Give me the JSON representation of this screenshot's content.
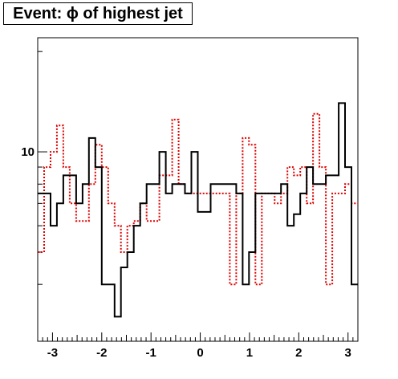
{
  "chart_data": {
    "type": "histogram-step",
    "title": "Event: ϕ of highest jet",
    "xlabel": "",
    "ylabel": "",
    "xlim": [
      -3.3,
      3.2
    ],
    "x_ticks": [
      -3,
      -2,
      -1,
      0,
      1,
      2,
      3
    ],
    "x_tick_labels": [
      "-3",
      "-2",
      "-1",
      "0",
      "1",
      "2",
      "3"
    ],
    "y_scale": "log",
    "ylim": [
      2.7,
      22
    ],
    "y_major_ticks": [
      10
    ],
    "y_tick_labels": [
      "10"
    ],
    "y_minor_ticks": [
      4,
      5,
      6,
      7,
      8,
      9,
      20
    ],
    "bin_edges": [
      -3.3,
      -3.17,
      -3.04,
      -2.91,
      -2.78,
      -2.65,
      -2.52,
      -2.39,
      -2.26,
      -2.13,
      -2.0,
      -1.87,
      -1.74,
      -1.61,
      -1.48,
      -1.35,
      -1.22,
      -1.09,
      -0.96,
      -0.83,
      -0.7,
      -0.57,
      -0.44,
      -0.31,
      -0.18,
      -0.05,
      0.08,
      0.21,
      0.34,
      0.47,
      0.6,
      0.73,
      0.86,
      0.99,
      1.12,
      1.25,
      1.38,
      1.51,
      1.64,
      1.77,
      1.9,
      2.03,
      2.16,
      2.29,
      2.42,
      2.55,
      2.68,
      2.81,
      2.94,
      3.07,
      3.2
    ],
    "series": [
      {
        "line_style": "solid",
        "color": "#000000",
        "values": [
          7.5,
          7.5,
          6,
          7,
          8.5,
          8.5,
          7,
          8,
          11,
          9,
          4,
          4,
          3.2,
          4.5,
          5,
          6,
          7,
          8,
          8,
          10,
          7.5,
          8,
          8,
          7.5,
          10,
          6.6,
          6.6,
          8,
          8,
          8,
          8,
          7.5,
          4,
          5,
          7.5,
          7.5,
          7.5,
          7.5,
          8,
          6,
          6.5,
          7.5,
          9,
          8,
          8,
          8.5,
          8.5,
          14,
          9,
          4
        ]
      },
      {
        "line_style": "dotted",
        "color": "#e00000",
        "values": [
          5,
          9,
          10,
          12,
          9,
          7,
          6.2,
          6.2,
          8,
          10.5,
          9,
          7,
          6,
          5,
          6,
          6.2,
          7,
          6.2,
          6.2,
          8.5,
          8.5,
          12.5,
          8,
          7.5,
          7.5,
          7.5,
          7.5,
          7.5,
          7.5,
          7.5,
          4,
          7.5,
          11,
          10.5,
          4,
          7.5,
          7.5,
          7,
          7.5,
          9,
          8.5,
          9,
          7,
          13,
          9,
          4,
          7.5,
          7.5,
          8,
          7
        ]
      }
    ],
    "legend": "none",
    "grid": false
  }
}
